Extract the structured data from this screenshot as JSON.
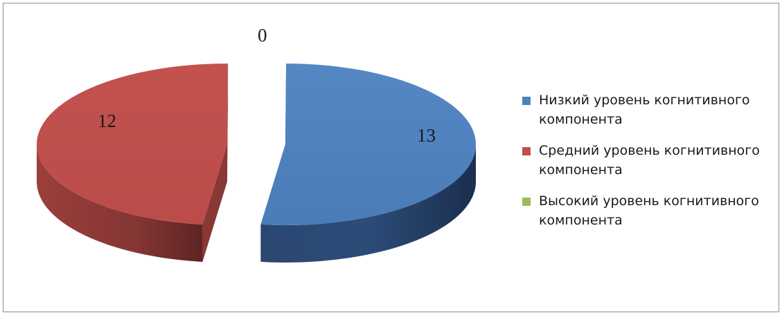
{
  "chart_data": {
    "type": "pie",
    "style": "3d-exploded",
    "categories": [
      "Низкий уровень когнитивного компонента",
      "Средний уровень когнитивного компонента",
      "Высокий уровень когнитивного компонента"
    ],
    "values": [
      13,
      12,
      0
    ],
    "data_labels": [
      "13",
      "12",
      "0"
    ],
    "colors": [
      "#4f81bd",
      "#c0504d",
      "#9bbb59"
    ],
    "legend_position": "right"
  }
}
